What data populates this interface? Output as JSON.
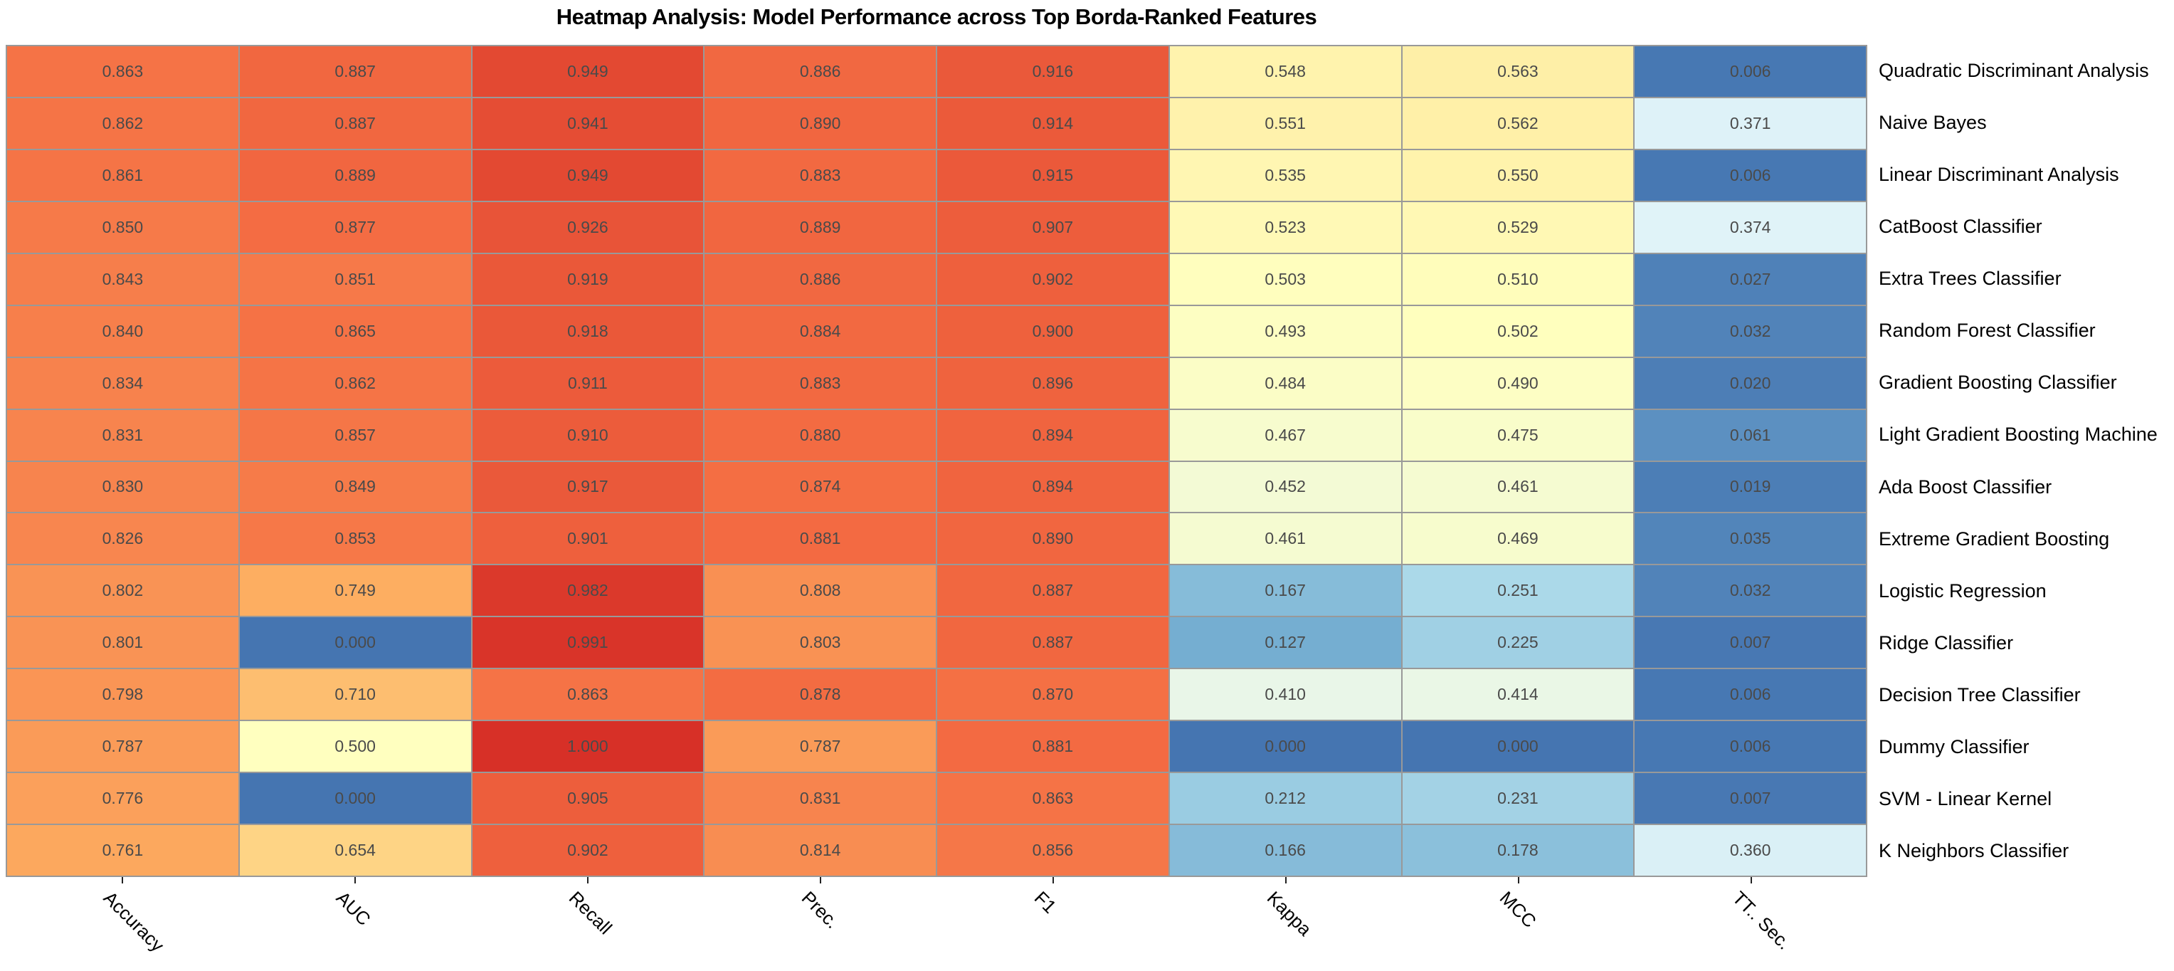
{
  "title": "Heatmap Analysis: Model Performance across Top Borda-Ranked Features",
  "chart_data": {
    "type": "heatmap",
    "title": "Heatmap Analysis: Model Performance across Top Borda-Ranked Features",
    "x_categories": [
      "Accuracy",
      "AUC",
      "Recall",
      "Prec.",
      "F1",
      "Kappa",
      "MCC",
      "TT.. Sec."
    ],
    "y_categories": [
      "Quadratic Discriminant Analysis",
      "Naive Bayes",
      "Linear Discriminant Analysis",
      "CatBoost Classifier",
      "Extra Trees Classifier",
      "Random Forest Classifier",
      "Gradient Boosting Classifier",
      "Light Gradient Boosting Machine",
      "Ada Boost Classifier",
      "Extreme Gradient Boosting",
      "Logistic Regression",
      "Ridge Classifier",
      "Decision Tree Classifier",
      "Dummy Classifier",
      "SVM - Linear Kernel",
      "K Neighbors Classifier"
    ],
    "values": [
      [
        0.863,
        0.887,
        0.949,
        0.886,
        0.916,
        0.548,
        0.563,
        0.006
      ],
      [
        0.862,
        0.887,
        0.941,
        0.89,
        0.914,
        0.551,
        0.562,
        0.371
      ],
      [
        0.861,
        0.889,
        0.949,
        0.883,
        0.915,
        0.535,
        0.55,
        0.006
      ],
      [
        0.85,
        0.877,
        0.926,
        0.889,
        0.907,
        0.523,
        0.529,
        0.374
      ],
      [
        0.843,
        0.851,
        0.919,
        0.886,
        0.902,
        0.503,
        0.51,
        0.027
      ],
      [
        0.84,
        0.865,
        0.918,
        0.884,
        0.9,
        0.493,
        0.502,
        0.032
      ],
      [
        0.834,
        0.862,
        0.911,
        0.883,
        0.896,
        0.484,
        0.49,
        0.02
      ],
      [
        0.831,
        0.857,
        0.91,
        0.88,
        0.894,
        0.467,
        0.475,
        0.061
      ],
      [
        0.83,
        0.849,
        0.917,
        0.874,
        0.894,
        0.452,
        0.461,
        0.019
      ],
      [
        0.826,
        0.853,
        0.901,
        0.881,
        0.89,
        0.461,
        0.469,
        0.035
      ],
      [
        0.802,
        0.749,
        0.982,
        0.808,
        0.887,
        0.167,
        0.251,
        0.032
      ],
      [
        0.801,
        0.0,
        0.991,
        0.803,
        0.887,
        0.127,
        0.225,
        0.007
      ],
      [
        0.798,
        0.71,
        0.863,
        0.878,
        0.87,
        0.41,
        0.414,
        0.006
      ],
      [
        0.787,
        0.5,
        1.0,
        0.787,
        0.881,
        0.0,
        0.0,
        0.006
      ],
      [
        0.776,
        0.0,
        0.905,
        0.831,
        0.863,
        0.212,
        0.231,
        0.007
      ],
      [
        0.761,
        0.654,
        0.902,
        0.814,
        0.856,
        0.166,
        0.178,
        0.36
      ]
    ],
    "value_format": "3-decimals",
    "value_range": [
      0,
      1
    ],
    "colormap": {
      "name": "RdYlBu reversed (truncated ends)",
      "anchors": [
        "#a50026",
        "#d73027",
        "#f46d43",
        "#fdae61",
        "#fee090",
        "#ffffbf",
        "#e0f3f8",
        "#abd9e9",
        "#74add1",
        "#4575b1",
        "#313695"
      ],
      "position_of_value": "pos = 0.9 - 0.8 * value",
      "high_color_meaning": "red = high value",
      "low_color_meaning": "blue = low value"
    },
    "grid": true,
    "legend": "none",
    "colors": {
      "grid_line": "#999999",
      "cell_text": "#4a4a4a",
      "axis_label_text": "#000000",
      "title_text": "#000000",
      "background": "#ffffff"
    }
  }
}
